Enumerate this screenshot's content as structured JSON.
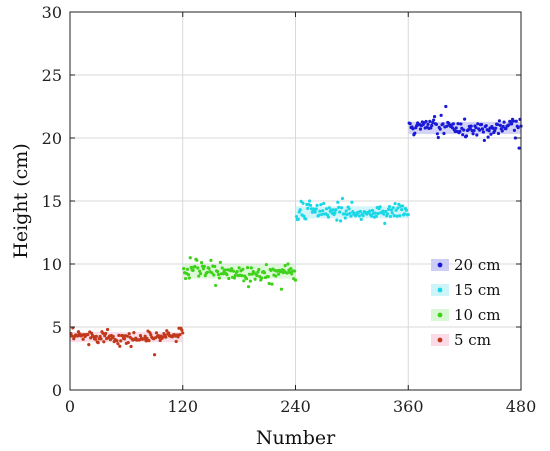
{
  "chart_data": {
    "type": "scatter",
    "title": "",
    "xlabel": "Number",
    "ylabel": "Height (cm)",
    "xlim": [
      0,
      480
    ],
    "ylim": [
      0,
      30
    ],
    "xticks": [
      0,
      120,
      240,
      360,
      480
    ],
    "yticks": [
      0,
      5,
      10,
      15,
      20,
      25,
      30
    ],
    "grid": true,
    "legend_position": "lower-right",
    "series": [
      {
        "name": "20 cm",
        "color": "#1a1ad6",
        "band_color": "#c8c8f5",
        "x_range": [
          361,
          480
        ],
        "mean": 20.8,
        "spread": 0.3,
        "outliers": [
          [
            400,
            22.5
          ],
          [
            388,
            21.7
          ],
          [
            395,
            21.8
          ],
          [
            478,
            19.2
          ],
          [
            420,
            21.5
          ],
          [
            474,
            20.0
          ]
        ]
      },
      {
        "name": "15 cm",
        "color": "#19d7e6",
        "band_color": "#c8f3f8",
        "x_range": [
          241,
          360
        ],
        "mean": 14.1,
        "spread": 0.3,
        "outliers": [
          [
            290,
            15.2
          ],
          [
            285,
            14.9
          ],
          [
            270,
            14.8
          ],
          [
            300,
            14.9
          ],
          [
            250,
            13.6
          ],
          [
            255,
            15.0
          ]
        ]
      },
      {
        "name": "10 cm",
        "color": "#3fd21a",
        "band_color": "#d4f7d0",
        "x_range": [
          121,
          240
        ],
        "mean": 9.4,
        "spread": 0.35,
        "outliers": [
          [
            128,
            10.5
          ],
          [
            135,
            10.3
          ],
          [
            155,
            8.3
          ],
          [
            190,
            8.2
          ],
          [
            225,
            8.0
          ],
          [
            215,
            8.4
          ],
          [
            232,
            10.0
          ]
        ]
      },
      {
        "name": "5 cm",
        "color": "#c0391b",
        "band_color": "#f9d6e4",
        "x_range": [
          1,
          120
        ],
        "mean": 4.2,
        "spread": 0.25,
        "outliers": [
          [
            90,
            2.8
          ],
          [
            40,
            4.8
          ],
          [
            103,
            4.7
          ],
          [
            118,
            4.9
          ],
          [
            20,
            3.6
          ],
          [
            60,
            3.7
          ]
        ]
      }
    ]
  }
}
